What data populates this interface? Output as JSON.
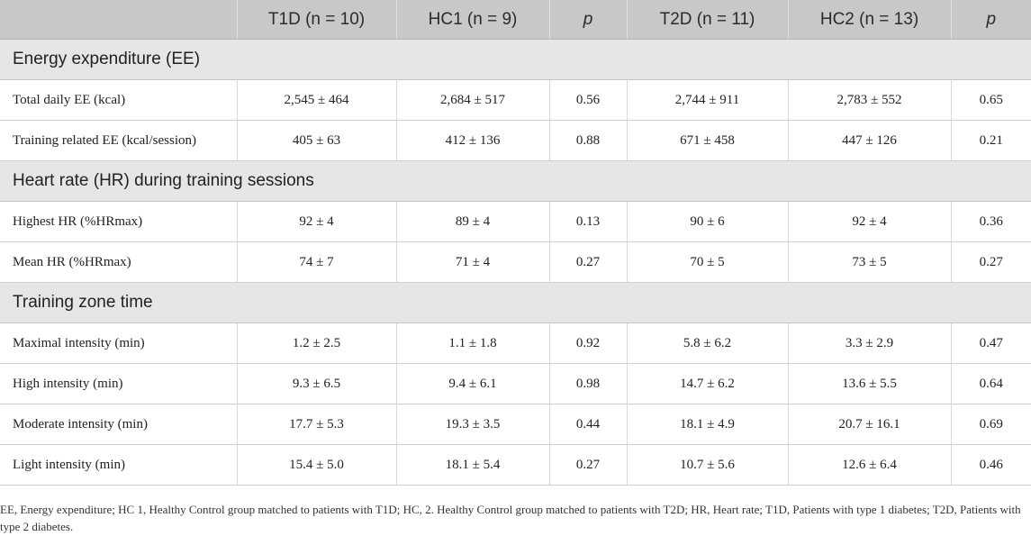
{
  "table": {
    "headers": [
      "",
      "T1D (n = 10)",
      "HC1 (n = 9)",
      "p",
      "T2D (n = 11)",
      "HC2 (n = 13)",
      "p"
    ],
    "sections": [
      {
        "title": "Energy expenditure (EE)",
        "rows": [
          [
            "Total daily EE (kcal)",
            "2,545 ± 464",
            "2,684 ± 517",
            "0.56",
            "2,744 ± 911",
            "2,783 ± 552",
            "0.65"
          ],
          [
            "Training related EE (kcal/session)",
            "405 ± 63",
            "412 ± 136",
            "0.88",
            "671 ± 458",
            "447 ± 126",
            "0.21"
          ]
        ]
      },
      {
        "title": "Heart rate (HR) during training sessions",
        "rows": [
          [
            "Highest HR (%HRmax)",
            "92 ± 4",
            "89 ± 4",
            "0.13",
            "90 ± 6",
            "92 ± 4",
            "0.36"
          ],
          [
            "Mean HR (%HRmax)",
            "74 ± 7",
            "71 ± 4",
            "0.27",
            "70 ± 5",
            "73 ± 5",
            "0.27"
          ]
        ]
      },
      {
        "title": "Training zone time",
        "rows": [
          [
            "Maximal intensity (min)",
            "1.2 ± 2.5",
            "1.1 ± 1.8",
            "0.92",
            "5.8 ± 6.2",
            "3.3 ± 2.9",
            "0.47"
          ],
          [
            "High intensity (min)",
            "9.3 ± 6.5",
            "9.4 ± 6.1",
            "0.98",
            "14.7 ± 6.2",
            "13.6 ± 5.5",
            "0.64"
          ],
          [
            "Moderate intensity (min)",
            "17.7 ± 5.3",
            "19.3 ± 3.5",
            "0.44",
            "18.1 ± 4.9",
            "20.7 ± 16.1",
            "0.69"
          ],
          [
            "Light intensity (min)",
            "15.4 ± 5.0",
            "18.1 ± 5.4",
            "0.27",
            "10.7 ± 5.6",
            "12.6 ± 6.4",
            "0.46"
          ]
        ]
      }
    ]
  },
  "footnote": "EE, Energy expenditure; HC 1, Healthy Control group matched to patients with T1D; HC, 2. Healthy Control group matched to patients with T2D; HR, Heart rate; T1D, Patients with type 1 diabetes; T2D, Patients with type 2 diabetes."
}
